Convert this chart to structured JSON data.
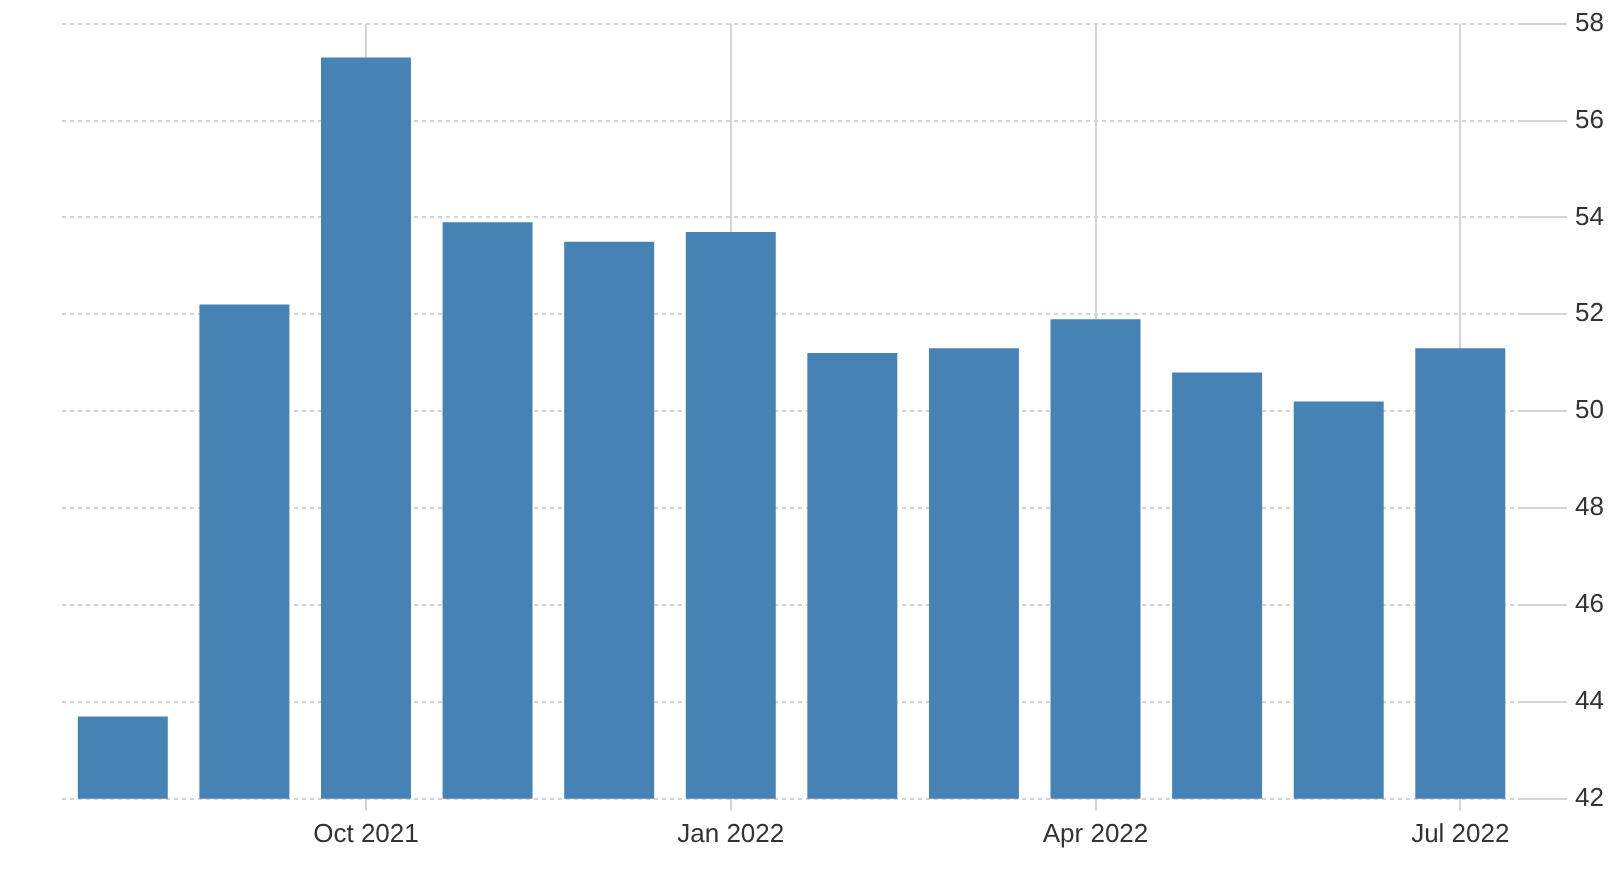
{
  "chart_data": {
    "type": "bar",
    "categories": [
      null,
      null,
      "Oct 2021",
      null,
      null,
      "Jan 2022",
      null,
      null,
      "Apr 2022",
      null,
      null,
      "Jul 2022"
    ],
    "values": [
      43.7,
      52.2,
      57.3,
      53.9,
      53.5,
      53.7,
      51.2,
      51.3,
      51.9,
      50.8,
      50.2,
      51.3
    ],
    "color": "#4682b4",
    "ylim": [
      42,
      58
    ],
    "yticks": [
      42,
      44,
      46,
      48,
      50,
      52,
      54,
      56,
      58
    ],
    "grid": true
  }
}
